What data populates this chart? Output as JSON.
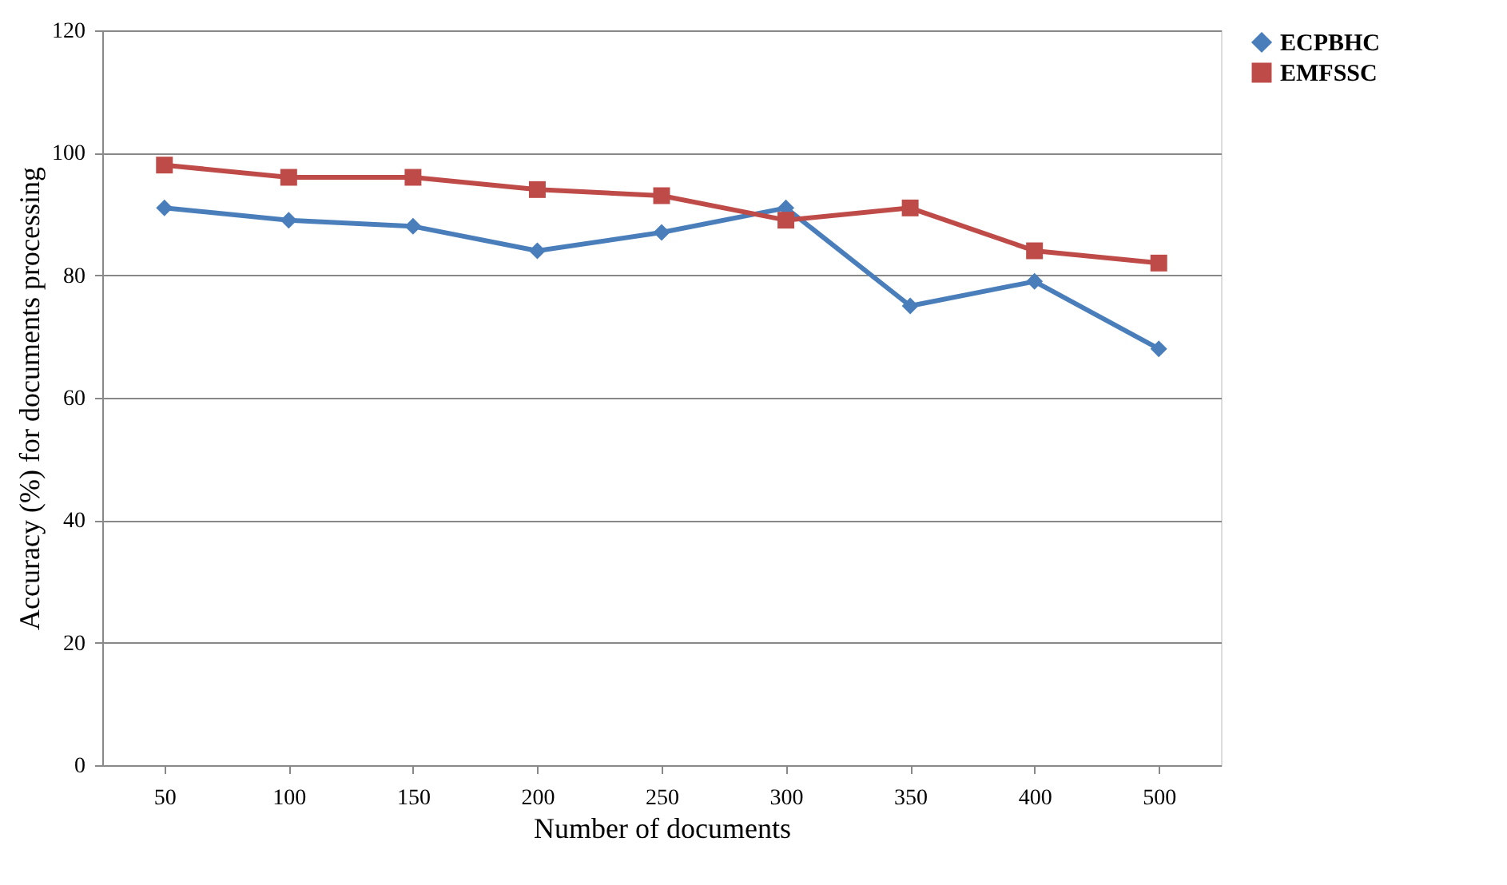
{
  "chart_data": {
    "type": "line",
    "xlabel": "Number of documents",
    "ylabel": "Accuracy (%) for documents processing",
    "categories": [
      "50",
      "100",
      "150",
      "200",
      "250",
      "300",
      "350",
      "400",
      "500"
    ],
    "series": [
      {
        "name": "ECPBHC",
        "color": "#4a7ebb",
        "marker": "diamond",
        "values": [
          91,
          89,
          88,
          84,
          87,
          91,
          75,
          79,
          68
        ]
      },
      {
        "name": "EMFSSC",
        "color": "#be4b48",
        "marker": "square",
        "values": [
          98,
          96,
          96,
          94,
          93,
          89,
          91,
          84,
          82
        ]
      }
    ],
    "ylim": [
      0,
      120
    ],
    "yticks": [
      0,
      20,
      40,
      60,
      80,
      100,
      120
    ],
    "grid": "y",
    "legend": "right",
    "line_style": "solid"
  }
}
